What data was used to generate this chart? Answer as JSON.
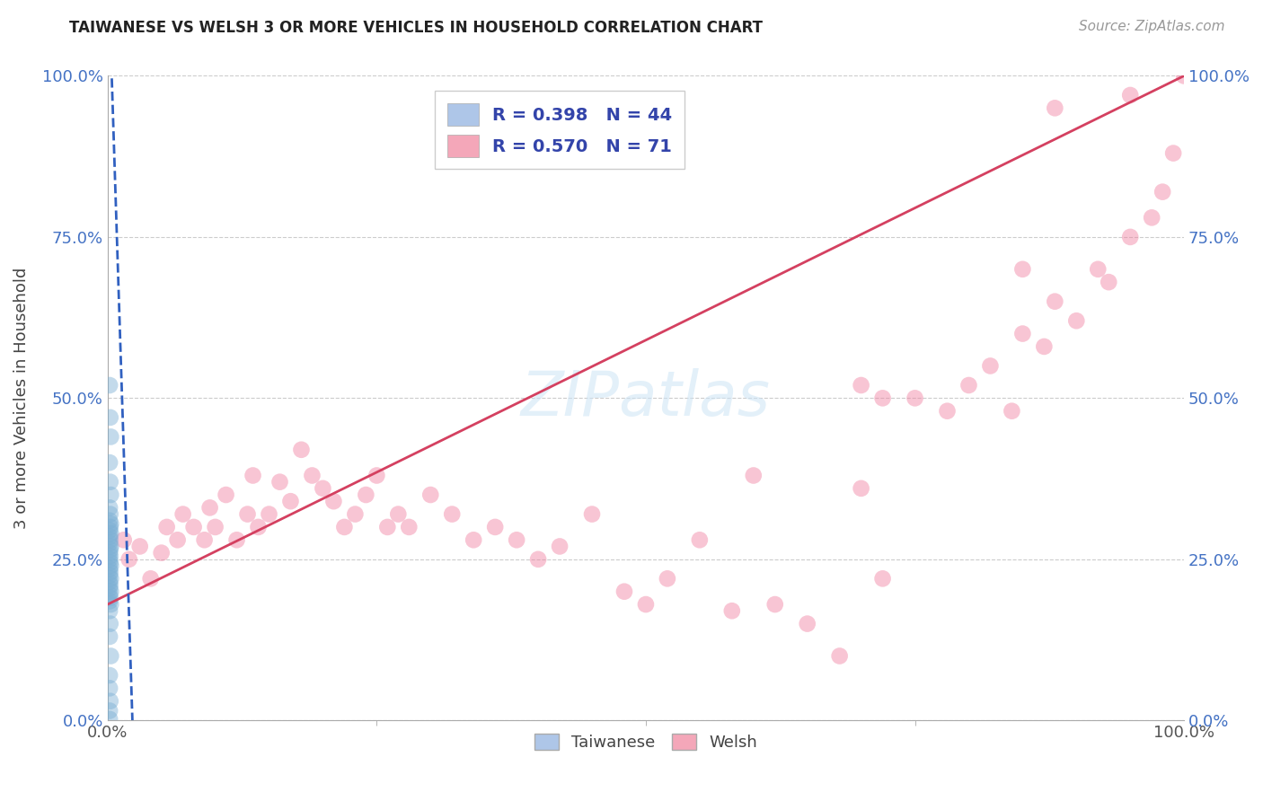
{
  "title": "TAIWANESE VS WELSH 3 OR MORE VEHICLES IN HOUSEHOLD CORRELATION CHART",
  "source": "Source: ZipAtlas.com",
  "ylabel": "3 or more Vehicles in Household",
  "legend_entries": [
    {
      "label": "R = 0.398   N = 44",
      "color": "#aec6e8"
    },
    {
      "label": "R = 0.570   N = 71",
      "color": "#f4a7b9"
    }
  ],
  "legend_bottom": [
    "Taiwanese",
    "Welsh"
  ],
  "taiwanese_color": "#7bafd4",
  "welsh_color": "#f080a0",
  "trend_taiwanese_color": "#3060c0",
  "trend_welsh_color": "#d44060",
  "background_color": "#ffffff",
  "grid_color": "#cccccc",
  "taiwanese_x": [
    0.2,
    0.25,
    0.3,
    0.2,
    0.25,
    0.3,
    0.2,
    0.25,
    0.2,
    0.3,
    0.25,
    0.2,
    0.3,
    0.2,
    0.25,
    0.2,
    0.3,
    0.25,
    0.2,
    0.25,
    0.2,
    0.25,
    0.3,
    0.2,
    0.25,
    0.2,
    0.3,
    0.2,
    0.25,
    0.2,
    0.3,
    0.2,
    0.25,
    0.2,
    0.3,
    0.2,
    0.25,
    0.2,
    0.3,
    0.2,
    0.2,
    0.25,
    0.2,
    0.2
  ],
  "taiwanese_y": [
    52.0,
    47.0,
    44.0,
    40.0,
    37.0,
    35.0,
    33.0,
    32.0,
    31.0,
    30.5,
    30.0,
    29.5,
    29.0,
    28.5,
    28.0,
    27.5,
    27.0,
    26.5,
    26.0,
    25.5,
    25.0,
    24.5,
    24.0,
    23.5,
    23.0,
    22.5,
    22.0,
    21.5,
    21.0,
    20.5,
    20.0,
    19.5,
    19.0,
    18.5,
    18.0,
    17.0,
    15.0,
    13.0,
    10.0,
    7.0,
    5.0,
    3.0,
    1.5,
    0.2
  ],
  "welsh_x": [
    1.5,
    2.0,
    3.0,
    4.0,
    5.0,
    5.5,
    6.5,
    7.0,
    8.0,
    9.0,
    9.5,
    10.0,
    11.0,
    12.0,
    13.0,
    13.5,
    14.0,
    15.0,
    16.0,
    17.0,
    18.0,
    19.0,
    20.0,
    21.0,
    22.0,
    23.0,
    24.0,
    25.0,
    26.0,
    27.0,
    28.0,
    30.0,
    32.0,
    34.0,
    36.0,
    38.0,
    40.0,
    42.0,
    45.0,
    48.0,
    50.0,
    52.0,
    55.0,
    58.0,
    60.0,
    62.0,
    65.0,
    68.0,
    70.0,
    72.0,
    75.0,
    78.0,
    80.0,
    82.0,
    84.0,
    85.0,
    87.0,
    88.0,
    90.0,
    92.0,
    93.0,
    95.0,
    97.0,
    98.0,
    99.0,
    100.0,
    70.0,
    72.0,
    85.0,
    88.0,
    95.0
  ],
  "welsh_y": [
    28.0,
    25.0,
    27.0,
    22.0,
    26.0,
    30.0,
    28.0,
    32.0,
    30.0,
    28.0,
    33.0,
    30.0,
    35.0,
    28.0,
    32.0,
    38.0,
    30.0,
    32.0,
    37.0,
    34.0,
    42.0,
    38.0,
    36.0,
    34.0,
    30.0,
    32.0,
    35.0,
    38.0,
    30.0,
    32.0,
    30.0,
    35.0,
    32.0,
    28.0,
    30.0,
    28.0,
    25.0,
    27.0,
    32.0,
    20.0,
    18.0,
    22.0,
    28.0,
    17.0,
    38.0,
    18.0,
    15.0,
    10.0,
    36.0,
    22.0,
    50.0,
    48.0,
    52.0,
    55.0,
    48.0,
    60.0,
    58.0,
    65.0,
    62.0,
    70.0,
    68.0,
    75.0,
    78.0,
    82.0,
    88.0,
    100.0,
    52.0,
    50.0,
    70.0,
    95.0,
    97.0
  ],
  "xlim": [
    0.0,
    100.0
  ],
  "ylim": [
    0.0,
    100.0
  ],
  "ytick_labels_left": [
    "0.0%",
    "25.0%",
    "50.0%",
    "75.0%",
    "100.0%"
  ],
  "ytick_labels_right": [
    "0.0%",
    "25.0%",
    "50.0%",
    "75.0%",
    "100.0%"
  ],
  "ytick_values": [
    0,
    25,
    50,
    75,
    100
  ],
  "xtick_labels": [
    "0.0%",
    "100.0%"
  ],
  "xtick_values": [
    0,
    100
  ],
  "xtick_minor_values": [
    25,
    50,
    75
  ]
}
